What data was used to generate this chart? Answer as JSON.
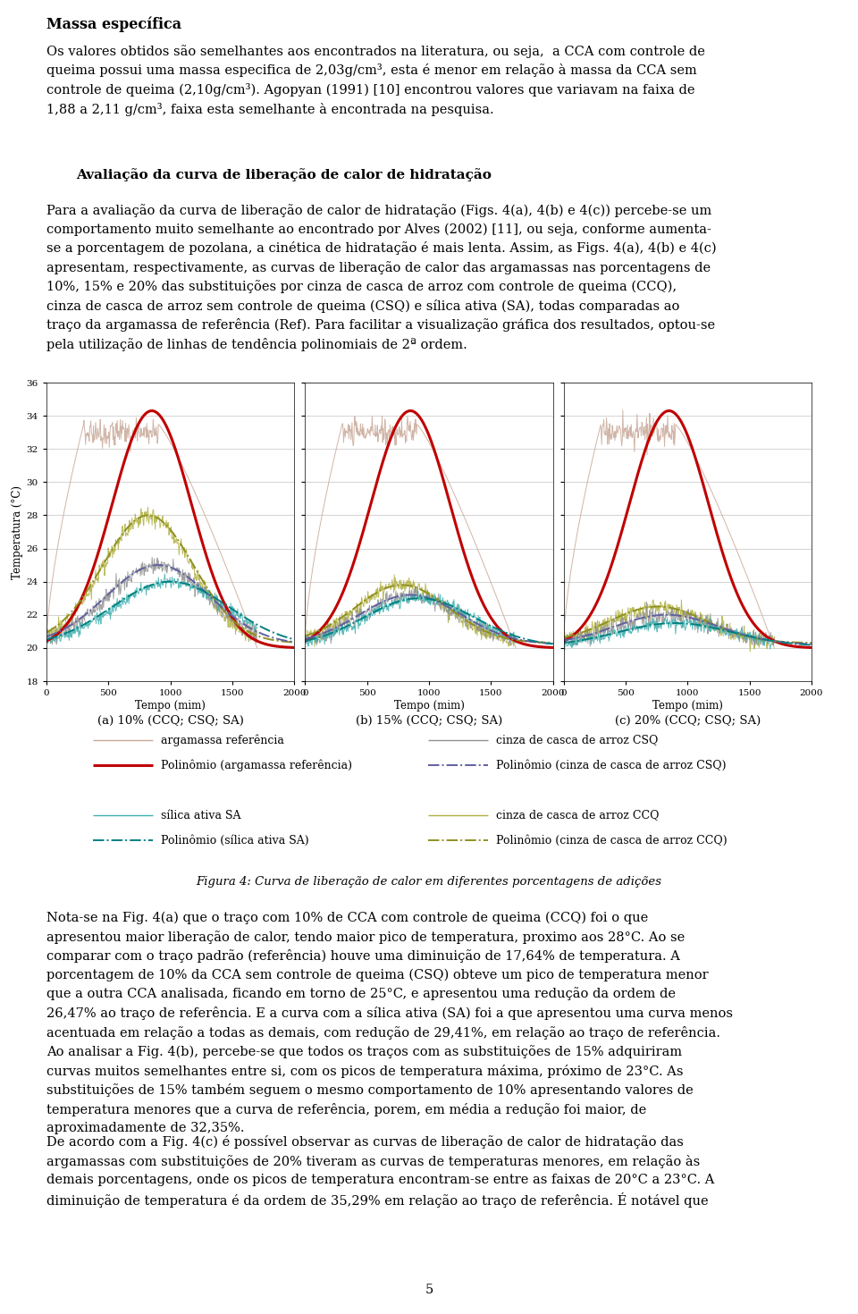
{
  "page_title_bold": "Massa específica",
  "subplot_labels": [
    "(a) 10% (CCQ; CSQ; SA)",
    "(b) 15% (CCQ; CSQ; SA)",
    "(c) 20% (CCQ; CSQ; SA)"
  ],
  "ylabel": "Temperatura (°C)",
  "xlabel": "Tempo (mim)",
  "ylim": [
    18,
    36
  ],
  "xlim": [
    0,
    2000
  ],
  "yticks": [
    18,
    20,
    22,
    24,
    26,
    28,
    30,
    32,
    34,
    36
  ],
  "xticks": [
    0,
    500,
    1000,
    1500,
    2000
  ],
  "fig_caption": "Figura 4: Curva de liberação de calor em diferentes porcentagens de adições",
  "color_ref_raw": "#c8a898",
  "color_ref_poly": "#c00000",
  "color_csq_raw": "#909090",
  "color_csq_poly": "#6060a0",
  "color_sa_raw": "#40b0b0",
  "color_sa_poly": "#008080",
  "color_ccq_raw": "#b0b040",
  "color_ccq_poly": "#909020",
  "bg_color": "#ffffff",
  "text_color": "#000000",
  "grid_color": "#cccccc"
}
